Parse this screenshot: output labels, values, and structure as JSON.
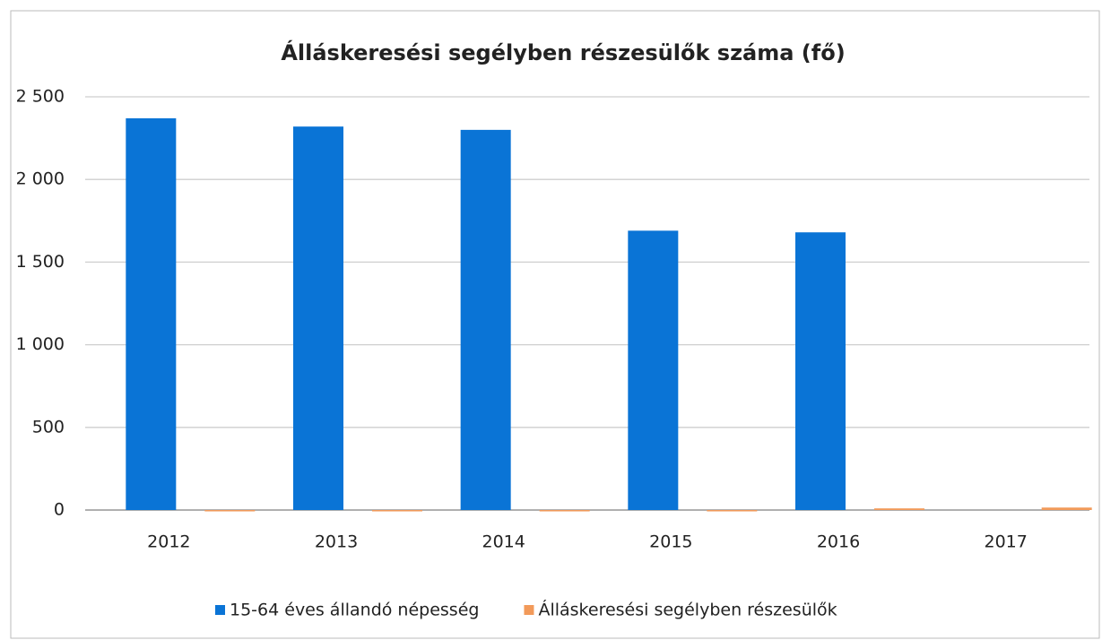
{
  "chart_data": {
    "type": "bar",
    "title": "Álláskeresési segélyben részesülők száma (fő)",
    "categories": [
      "2012",
      "2013",
      "2014",
      "2015",
      "2016",
      "2017"
    ],
    "series": [
      {
        "name": "15-64 éves állandó népesség",
        "color": "#0a74d6",
        "values": [
          2370,
          2320,
          2300,
          1690,
          1680,
          null
        ]
      },
      {
        "name": "Álláskeresési segélyben részesülők",
        "color": "#f29a5a",
        "values": [
          0,
          0,
          0,
          0,
          10,
          15
        ]
      }
    ],
    "ylim": [
      0,
      2500
    ],
    "yticks": [
      0,
      500,
      {
        "value": 1000,
        "label": "1 000"
      },
      {
        "value": 1500,
        "label": "1 500"
      },
      {
        "value": 2000,
        "label": "2 000"
      },
      {
        "value": 2500,
        "label": "2 500"
      }
    ],
    "grid": true,
    "legend": "bottom"
  }
}
